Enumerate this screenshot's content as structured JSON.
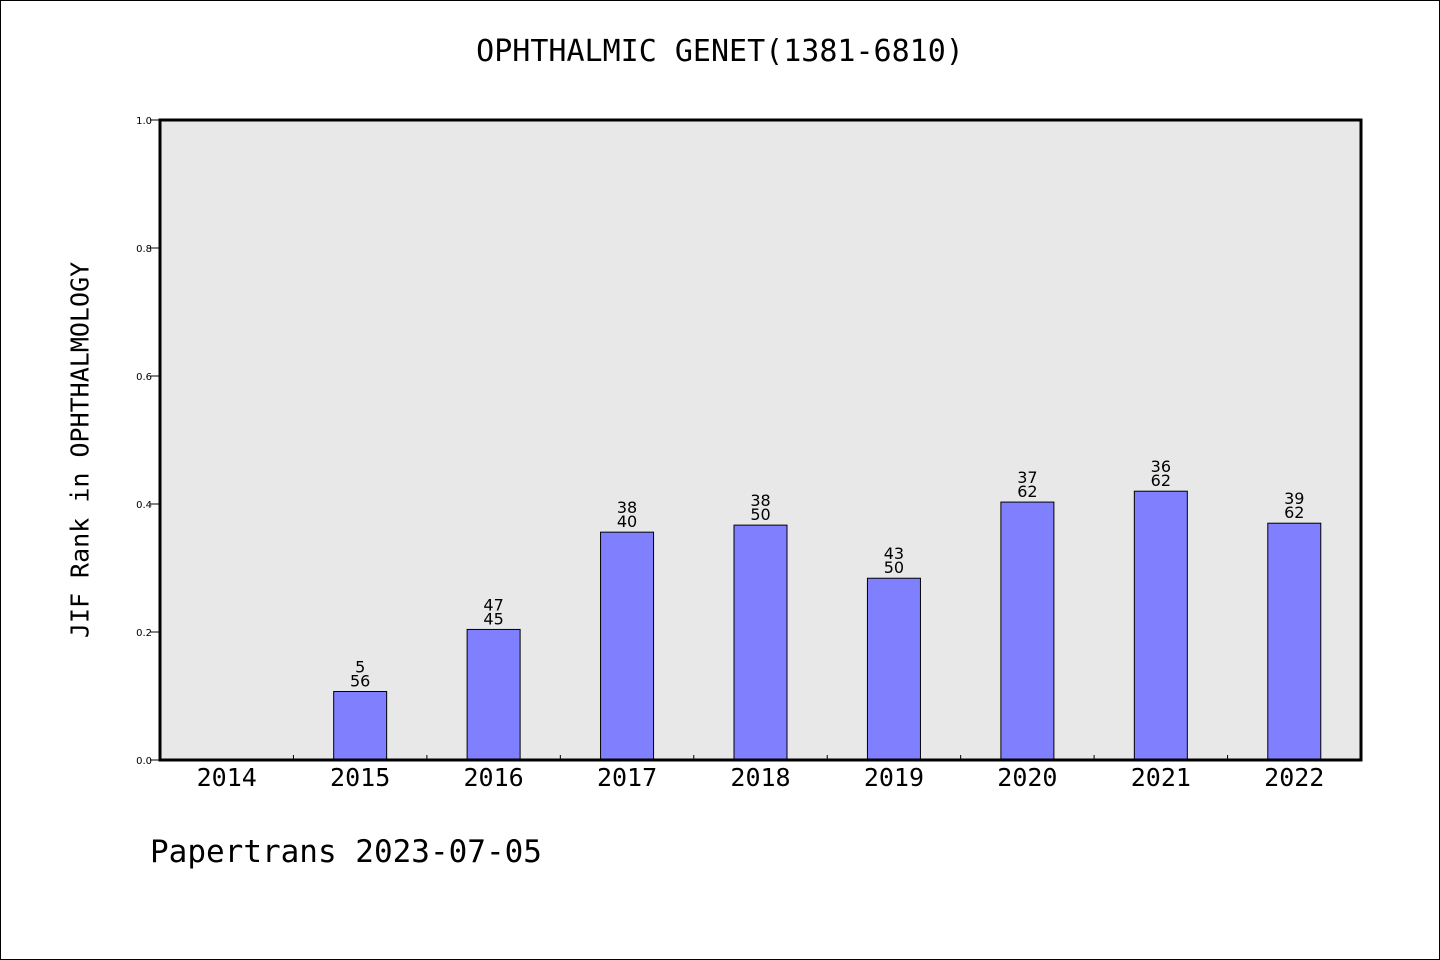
{
  "chart_data": {
    "type": "bar",
    "title": "OPHTHALMIC GENET(1381-6810)",
    "xlabel": "",
    "ylabel": "JIF Rank in OPHTHALMOLOGY",
    "ylim": [
      0,
      1.0
    ],
    "yticks": [
      "0.0",
      "0.2",
      "0.4",
      "0.6",
      "0.8",
      "1.0"
    ],
    "categories": [
      "2014",
      "2015",
      "2016",
      "2017",
      "2018",
      "2019",
      "2020",
      "2021",
      "2022"
    ],
    "values": [
      null,
      0.107,
      0.204,
      0.356,
      0.367,
      0.284,
      0.403,
      0.42,
      0.37
    ],
    "labels": [
      null,
      [
        "5",
        "56"
      ],
      [
        "47",
        "45"
      ],
      [
        "38",
        "40"
      ],
      [
        "38",
        "50"
      ],
      [
        "43",
        "50"
      ],
      [
        "37",
        "62"
      ],
      [
        "36",
        "62"
      ],
      [
        "39",
        "62"
      ]
    ],
    "grid": false,
    "legend": "none",
    "colors": {
      "bar_fill": "#8080ff",
      "bar_stroke": "#000000",
      "plot_background": "#e8e8e8",
      "axis": "#000000"
    }
  },
  "footer": {
    "text": "Papertrans 2023-07-05"
  }
}
